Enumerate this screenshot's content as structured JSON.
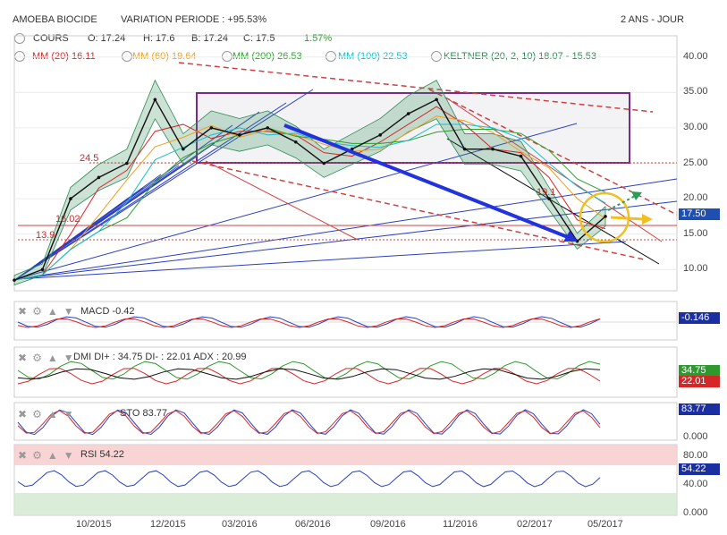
{
  "header": {
    "instrument": "AMOEBA BIOCIDE",
    "variation": "VARIATION PERIODE : +95.53%",
    "period": "2 ANS - JOUR"
  },
  "quote": {
    "cours_label": "COURS",
    "open": "O: 17.24",
    "high": "H: 17.6",
    "low": "B: 17.24",
    "close": "C: 17.5",
    "change": "1.57%"
  },
  "indicators": {
    "mm20": "MM (20) 16.11",
    "mm60": "MM (60) 19.64",
    "mm200": "MM (200) 26.53",
    "mm100": "MM (100) 22.53",
    "keltner": "KELTNER (20, 2, 10) 18.07 - 15.53"
  },
  "colors": {
    "mm20": "#d62728",
    "mm60": "#f0a020",
    "mm200": "#2ca02c",
    "mm100": "#17becf",
    "keltner": "#2e8b57",
    "price_tag": "#1f4fb0",
    "macd_tag": "#1c2fa0",
    "dmi_plus": "#2e9a2e",
    "dmi_minus": "#d62728",
    "sto_tag": "#1c2fa0",
    "rsi_tag": "#1c2fa0",
    "rsi_band": "#f7c9c9",
    "rsi_low_band": "#cfe8cf"
  },
  "price_axis": [
    "40.00",
    "35.00",
    "30.00",
    "25.00",
    "20.00",
    "15.00",
    "10.00"
  ],
  "price_tag": "17.50",
  "annotations": {
    "l24": "24.5",
    "l16": "16.02",
    "l13": "13.9",
    "l19": "19.1"
  },
  "panels": {
    "macd": {
      "label": "MACD -0.42",
      "tag": "-0.146"
    },
    "dmi": {
      "label": "DMI DI+ : 34.75 DI- : 22.01 ADX : 20.99",
      "tag_plus": "34.75",
      "tag_minus": "22.01"
    },
    "sto": {
      "label": "STO 83.77",
      "tag": "83.77",
      "axis": [
        "0.000"
      ]
    },
    "rsi": {
      "label": "RSI 54.22",
      "tag": "54.22",
      "axis": [
        "80.00",
        "40.00",
        "0.000"
      ]
    }
  },
  "x_axis": [
    "10/2015",
    "12/2015",
    "03/2016",
    "06/2016",
    "09/2016",
    "11/2016",
    "02/2017",
    "05/2017"
  ],
  "chart_data": {
    "type": "line",
    "title": "AMOEBA BIOCIDE",
    "ylim": [
      7,
      43
    ],
    "x": [
      "2015-08",
      "2015-09",
      "2015-10",
      "2015-11",
      "2015-12",
      "2016-01",
      "2016-02",
      "2016-03",
      "2016-04",
      "2016-05",
      "2016-06",
      "2016-07",
      "2016-08",
      "2016-09",
      "2016-10",
      "2016-11",
      "2016-12",
      "2017-01",
      "2017-02",
      "2017-03",
      "2017-04",
      "2017-05"
    ],
    "series": [
      {
        "values": [
          8.5,
          10,
          20,
          23,
          25,
          34,
          27,
          30,
          29,
          30,
          28,
          25,
          27,
          29,
          32,
          34,
          27,
          27,
          26,
          20,
          14,
          17.5
        ]
      }
    ]
  }
}
